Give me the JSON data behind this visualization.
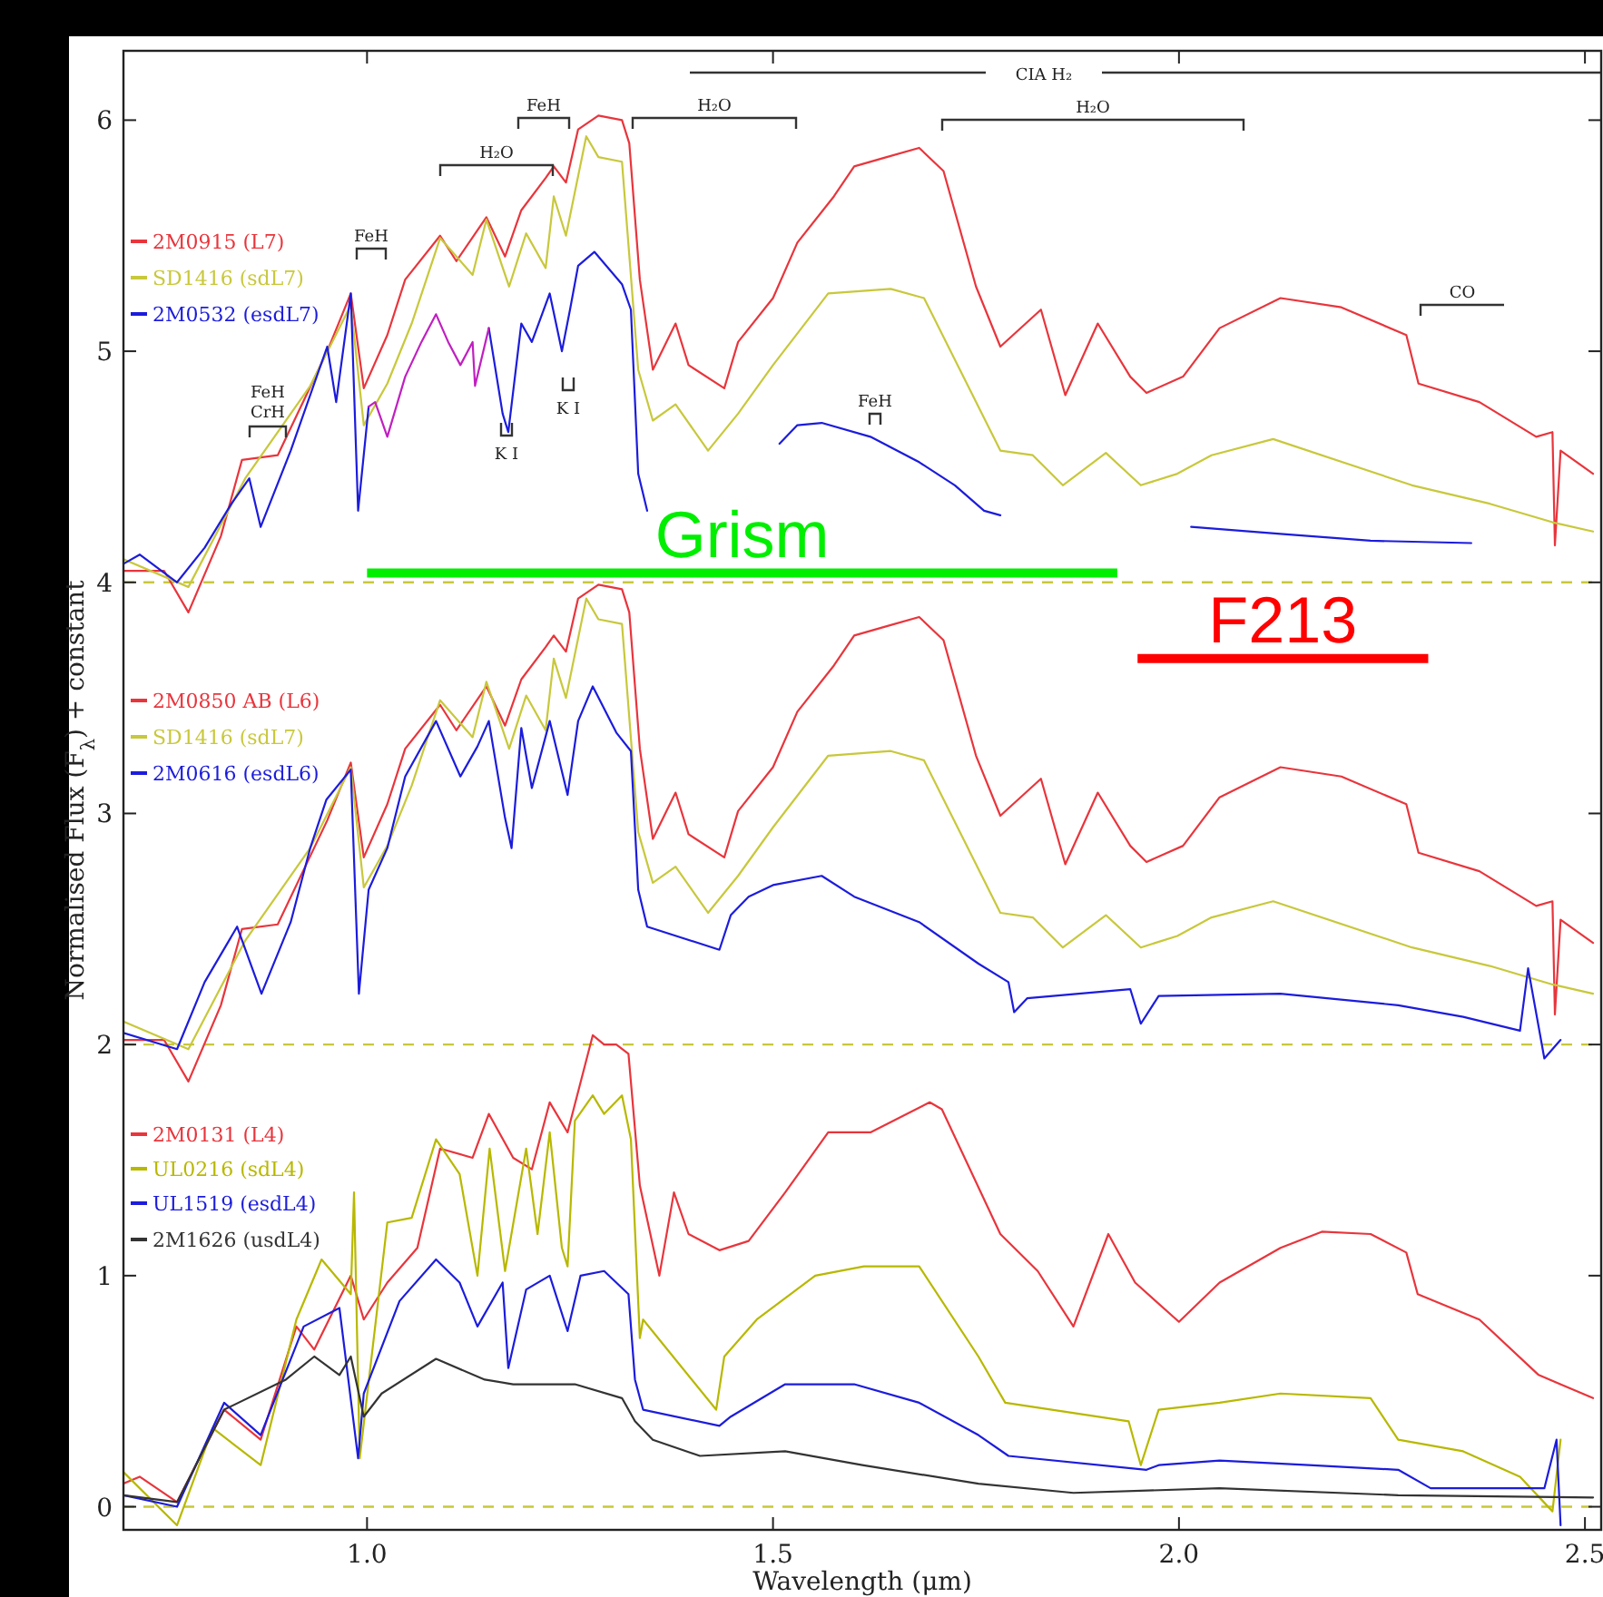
{
  "chart_data": {
    "type": "line",
    "xlabel": "Wavelength (μm)",
    "ylabel": "Normalised Flux (F$_{λ}$) + constant",
    "xlim": [
      0.7,
      2.52
    ],
    "ylim": [
      -0.1,
      6.3
    ],
    "xticks": [
      {
        "value": 1,
        "label": "1.0"
      },
      {
        "value": 1.5,
        "label": "1.5"
      },
      {
        "value": 2,
        "label": "2.0"
      },
      {
        "value": 2.5,
        "label": "2.5"
      }
    ],
    "yticks": [
      0,
      1,
      2,
      3,
      4,
      5,
      6
    ],
    "legend": "left",
    "ref_lines": [
      {
        "axis": "y",
        "value": 4,
        "color": "#c8c83c",
        "line_style": "dashed"
      },
      {
        "axis": "y",
        "value": 2,
        "color": "#c8c83c",
        "line_style": "dashed"
      },
      {
        "axis": "y",
        "value": 0,
        "color": "#c8c83c",
        "line_style": "dashed"
      }
    ],
    "series": [
      {
        "name": "2M0915 (L7)",
        "color": "#e8353c",
        "x": [
          0.7,
          0.75,
          0.78,
          0.82,
          0.846,
          0.89,
          0.951,
          0.98,
          0.996,
          1.025,
          1.047,
          1.09,
          1.11,
          1.147,
          1.17,
          1.19,
          1.22,
          1.23,
          1.245,
          1.26,
          1.285,
          1.314,
          1.323,
          1.336,
          1.352,
          1.38,
          1.396,
          1.44,
          1.457,
          1.5,
          1.53,
          1.575,
          1.6,
          1.64,
          1.68,
          1.71,
          1.75,
          1.78,
          1.83,
          1.86,
          1.9,
          1.94,
          1.96,
          2.005,
          2.05,
          2.125,
          2.2,
          2.28,
          2.295,
          2.37,
          2.44,
          2.46,
          2.463,
          2.47,
          2.51
        ],
        "values": [
          4.05,
          4.05,
          3.87,
          4.2,
          4.53,
          4.55,
          5.0,
          5.25,
          4.84,
          5.07,
          5.31,
          5.5,
          5.39,
          5.58,
          5.41,
          5.61,
          5.75,
          5.8,
          5.73,
          5.96,
          6.02,
          6.0,
          5.9,
          5.31,
          4.92,
          5.12,
          4.94,
          4.84,
          5.04,
          5.23,
          5.47,
          5.67,
          5.8,
          5.84,
          5.88,
          5.78,
          5.28,
          5.02,
          5.18,
          4.81,
          5.12,
          4.89,
          4.82,
          4.89,
          5.1,
          5.23,
          5.19,
          5.07,
          4.86,
          4.78,
          4.63,
          4.65,
          4.16,
          4.57,
          4.47
        ]
      },
      {
        "name": "SD1416 (sdL7)",
        "color": "#c8c83c",
        "x": [
          0.7,
          0.78,
          0.85,
          0.93,
          0.98,
          0.996,
          1.025,
          1.055,
          1.09,
          1.13,
          1.147,
          1.175,
          1.196,
          1.22,
          1.23,
          1.245,
          1.27,
          1.285,
          1.314,
          1.334,
          1.352,
          1.38,
          1.42,
          1.457,
          1.5,
          1.568,
          1.645,
          1.686,
          1.78,
          1.82,
          1.857,
          1.91,
          1.953,
          1.998,
          2.04,
          2.116,
          2.287,
          2.383,
          2.46,
          2.51
        ],
        "values": [
          4.1,
          3.98,
          4.45,
          4.85,
          5.2,
          4.68,
          4.86,
          5.12,
          5.49,
          5.33,
          5.57,
          5.28,
          5.51,
          5.36,
          5.67,
          5.5,
          5.93,
          5.84,
          5.82,
          4.92,
          4.7,
          4.77,
          4.57,
          4.73,
          4.94,
          5.25,
          5.27,
          5.23,
          4.57,
          4.55,
          4.42,
          4.56,
          4.42,
          4.47,
          4.55,
          4.62,
          4.42,
          4.34,
          4.26,
          4.22
        ]
      },
      {
        "name": "2M0532 (esdL7)",
        "color": "#1c1cdc",
        "x": [
          0.7,
          0.72,
          0.766,
          0.8,
          0.833,
          0.855,
          0.869,
          0.906,
          0.951,
          0.962,
          0.98,
          0.989,
          1.002,
          1.08,
          1.15,
          1.167,
          1.174,
          1.19,
          1.203,
          1.225,
          1.24,
          1.25,
          1.26,
          1.28,
          1.314,
          1.325,
          1.334,
          1.345,
          1.42,
          1.508,
          1.53,
          1.56,
          1.62,
          1.68,
          1.724,
          1.76,
          1.78,
          1.9,
          2.015,
          2.125,
          2.236,
          2.36
        ],
        "values": [
          4.08,
          4.12,
          4.0,
          4.15,
          4.34,
          4.45,
          4.24,
          4.57,
          5.02,
          4.78,
          5.25,
          4.31,
          4.76,
          null,
          5.1,
          4.73,
          4.65,
          5.12,
          5.04,
          5.25,
          5.0,
          5.18,
          5.37,
          5.43,
          5.29,
          5.18,
          4.47,
          4.31,
          null,
          4.6,
          4.68,
          4.69,
          4.63,
          4.52,
          4.42,
          4.31,
          4.29,
          null,
          4.24,
          4.21,
          4.18,
          4.17
        ]
      },
      {
        "color": "#c020c0",
        "x": [
          1.002,
          1.01,
          1.025,
          1.047,
          1.067,
          1.085,
          1.1,
          1.115,
          1.13,
          1.133,
          1.15
        ],
        "values": [
          4.76,
          4.78,
          4.63,
          4.89,
          5.04,
          5.16,
          5.04,
          4.94,
          5.04,
          4.85,
          5.1
        ]
      },
      {
        "name": "2M0850 AB (L6)",
        "color": "#e8353c",
        "x": [
          0.7,
          0.75,
          0.78,
          0.82,
          0.846,
          0.89,
          0.951,
          0.98,
          0.996,
          1.025,
          1.047,
          1.09,
          1.11,
          1.147,
          1.17,
          1.19,
          1.22,
          1.23,
          1.245,
          1.26,
          1.285,
          1.314,
          1.323,
          1.336,
          1.352,
          1.38,
          1.396,
          1.44,
          1.457,
          1.5,
          1.53,
          1.575,
          1.6,
          1.64,
          1.68,
          1.71,
          1.75,
          1.78,
          1.83,
          1.86,
          1.9,
          1.94,
          1.96,
          2.005,
          2.05,
          2.125,
          2.2,
          2.28,
          2.295,
          2.37,
          2.44,
          2.46,
          2.463,
          2.47,
          2.51
        ],
        "values": [
          2.02,
          2.02,
          1.84,
          2.17,
          2.5,
          2.52,
          2.97,
          3.22,
          2.81,
          3.04,
          3.28,
          3.47,
          3.36,
          3.55,
          3.38,
          3.58,
          3.72,
          3.77,
          3.7,
          3.93,
          3.99,
          3.97,
          3.87,
          3.28,
          2.89,
          3.09,
          2.91,
          2.81,
          3.01,
          3.2,
          3.44,
          3.64,
          3.77,
          3.81,
          3.85,
          3.75,
          3.25,
          2.99,
          3.15,
          2.78,
          3.09,
          2.86,
          2.79,
          2.86,
          3.07,
          3.2,
          3.16,
          3.04,
          2.83,
          2.75,
          2.6,
          2.62,
          2.13,
          2.54,
          2.44
        ]
      },
      {
        "name": "SD1416 (sdL7)",
        "color": "#c8c83c",
        "x": [
          0.7,
          0.78,
          0.85,
          0.93,
          0.98,
          0.996,
          1.025,
          1.055,
          1.09,
          1.13,
          1.147,
          1.175,
          1.196,
          1.22,
          1.23,
          1.245,
          1.27,
          1.285,
          1.314,
          1.334,
          1.352,
          1.38,
          1.42,
          1.457,
          1.5,
          1.568,
          1.645,
          1.686,
          1.78,
          1.82,
          1.857,
          1.91,
          1.953,
          1.998,
          2.04,
          2.116,
          2.287,
          2.383,
          2.46,
          2.51
        ],
        "values": [
          2.1,
          1.98,
          2.45,
          2.85,
          3.2,
          2.68,
          2.86,
          3.12,
          3.49,
          3.33,
          3.57,
          3.28,
          3.51,
          3.36,
          3.67,
          3.5,
          3.93,
          3.84,
          3.82,
          2.92,
          2.7,
          2.77,
          2.57,
          2.73,
          2.94,
          3.25,
          3.27,
          3.23,
          2.57,
          2.55,
          2.42,
          2.56,
          2.42,
          2.47,
          2.55,
          2.62,
          2.42,
          2.34,
          2.26,
          2.22
        ]
      },
      {
        "name": "2M0616 (esdL6)",
        "color": "#1c1cdc",
        "x": [
          0.7,
          0.766,
          0.8,
          0.84,
          0.87,
          0.906,
          0.93,
          0.95,
          0.98,
          0.99,
          1.002,
          1.025,
          1.047,
          1.085,
          1.115,
          1.136,
          1.15,
          1.17,
          1.178,
          1.19,
          1.203,
          1.225,
          1.247,
          1.26,
          1.278,
          1.307,
          1.325,
          1.334,
          1.345,
          1.434,
          1.448,
          1.47,
          1.5,
          1.56,
          1.6,
          1.68,
          1.753,
          1.79,
          1.797,
          1.813,
          1.94,
          1.953,
          1.975,
          2.125,
          2.27,
          2.35,
          2.42,
          2.43,
          2.45,
          2.47
        ],
        "values": [
          2.05,
          1.98,
          2.27,
          2.51,
          2.22,
          2.53,
          2.85,
          3.06,
          3.19,
          2.22,
          2.67,
          2.85,
          3.16,
          3.4,
          3.16,
          3.29,
          3.4,
          2.98,
          2.85,
          3.37,
          3.11,
          3.4,
          3.08,
          3.4,
          3.55,
          3.35,
          3.27,
          2.67,
          2.51,
          2.41,
          2.56,
          2.64,
          2.69,
          2.73,
          2.64,
          2.53,
          2.35,
          2.27,
          2.14,
          2.2,
          2.24,
          2.09,
          2.21,
          2.22,
          2.17,
          2.12,
          2.06,
          2.33,
          1.94,
          2.02
        ]
      },
      {
        "name": "2M0131 (L4)",
        "color": "#e8353c",
        "x": [
          0.7,
          0.72,
          0.766,
          0.824,
          0.869,
          0.913,
          0.935,
          0.98,
          0.996,
          1.025,
          1.062,
          1.09,
          1.13,
          1.15,
          1.18,
          1.203,
          1.225,
          1.247,
          1.278,
          1.292,
          1.307,
          1.322,
          1.336,
          1.36,
          1.378,
          1.396,
          1.434,
          1.47,
          1.515,
          1.568,
          1.62,
          1.693,
          1.708,
          1.78,
          1.826,
          1.87,
          1.913,
          1.946,
          2.0,
          2.05,
          2.125,
          2.176,
          2.236,
          2.28,
          2.294,
          2.37,
          2.443,
          2.51
        ],
        "values": [
          0.1,
          0.13,
          0.02,
          0.42,
          0.29,
          0.78,
          0.68,
          1.0,
          0.81,
          0.97,
          1.12,
          1.55,
          1.51,
          1.7,
          1.51,
          1.46,
          1.75,
          1.62,
          2.04,
          2.0,
          2.0,
          1.96,
          1.39,
          1.0,
          1.36,
          1.18,
          1.11,
          1.15,
          1.36,
          1.62,
          1.62,
          1.75,
          1.72,
          1.18,
          1.02,
          0.78,
          1.18,
          0.97,
          0.8,
          0.97,
          1.12,
          1.19,
          1.18,
          1.1,
          0.92,
          0.81,
          0.57,
          0.47
        ]
      },
      {
        "name": "UL0216 (sdL4)",
        "color": "#b8b800",
        "x": [
          0.7,
          0.766,
          0.81,
          0.869,
          0.913,
          0.944,
          0.98,
          0.984,
          0.991,
          1.025,
          1.055,
          1.085,
          1.114,
          1.136,
          1.151,
          1.17,
          1.196,
          1.21,
          1.225,
          1.24,
          1.247,
          1.256,
          1.278,
          1.292,
          1.314,
          1.325,
          1.336,
          1.34,
          1.43,
          1.44,
          1.48,
          1.552,
          1.612,
          1.68,
          1.753,
          1.786,
          1.938,
          1.953,
          1.975,
          2.05,
          2.125,
          2.236,
          2.27,
          2.35,
          2.42,
          2.46,
          2.47
        ],
        "values": [
          0.15,
          -0.08,
          0.34,
          0.18,
          0.81,
          1.07,
          0.92,
          1.36,
          0.21,
          1.23,
          1.25,
          1.59,
          1.44,
          1.0,
          1.55,
          1.02,
          1.55,
          1.18,
          1.62,
          1.12,
          1.04,
          1.67,
          1.78,
          1.7,
          1.78,
          1.59,
          0.73,
          0.81,
          0.42,
          0.65,
          0.81,
          1.0,
          1.04,
          1.04,
          0.65,
          0.45,
          0.37,
          0.18,
          0.42,
          0.45,
          0.49,
          0.47,
          0.29,
          0.24,
          0.13,
          -0.02,
          0.29
        ]
      },
      {
        "name": "UL1519 (esdL4)",
        "color": "#1c1cdc",
        "x": [
          0.7,
          0.766,
          0.824,
          0.869,
          0.922,
          0.966,
          0.989,
          0.996,
          1.04,
          1.085,
          1.114,
          1.136,
          1.167,
          1.174,
          1.196,
          1.225,
          1.247,
          1.263,
          1.292,
          1.322,
          1.33,
          1.34,
          1.434,
          1.448,
          1.515,
          1.6,
          1.68,
          1.753,
          1.79,
          1.96,
          1.975,
          2.05,
          2.16,
          2.27,
          2.31,
          2.383,
          2.45,
          2.465,
          2.47
        ],
        "values": [
          0.05,
          0.0,
          0.45,
          0.31,
          0.78,
          0.86,
          0.21,
          0.49,
          0.89,
          1.07,
          0.97,
          0.78,
          0.97,
          0.6,
          0.94,
          1.0,
          0.76,
          1.0,
          1.02,
          0.92,
          0.55,
          0.42,
          0.35,
          0.39,
          0.53,
          0.53,
          0.45,
          0.31,
          0.22,
          0.16,
          0.18,
          0.2,
          0.18,
          0.16,
          0.08,
          0.08,
          0.08,
          0.29,
          -0.08
        ]
      },
      {
        "name": "2M1626 (usdL4)",
        "color": "#333333",
        "x": [
          0.7,
          0.766,
          0.824,
          0.9,
          0.935,
          0.966,
          0.98,
          0.996,
          1.018,
          1.085,
          1.145,
          1.18,
          1.256,
          1.314,
          1.33,
          1.352,
          1.41,
          1.515,
          1.61,
          1.753,
          1.87,
          2.05,
          2.27,
          2.51
        ],
        "values": [
          0.05,
          0.02,
          0.42,
          0.55,
          0.65,
          0.57,
          0.65,
          0.39,
          0.49,
          0.64,
          0.55,
          0.53,
          0.53,
          0.47,
          0.37,
          0.29,
          0.22,
          0.24,
          0.18,
          0.1,
          0.06,
          0.08,
          0.05,
          0.04
        ]
      },
      {
        "name": "Grism",
        "color": "#00ee00",
        "x": [
          1.0,
          1.924
        ],
        "values": [
          4.04,
          4.04
        ]
      },
      {
        "name": "F213",
        "color": "#ff0000",
        "x": [
          1.949,
          2.307
        ],
        "values": [
          3.67,
          3.67
        ]
      }
    ],
    "annotations": [
      "FeH\nCrH",
      "FeH",
      "H₂O",
      "FeH",
      "H₂O",
      "H₂O",
      "CIA H₂",
      "K I",
      "K I",
      "FeH",
      "CO"
    ]
  }
}
